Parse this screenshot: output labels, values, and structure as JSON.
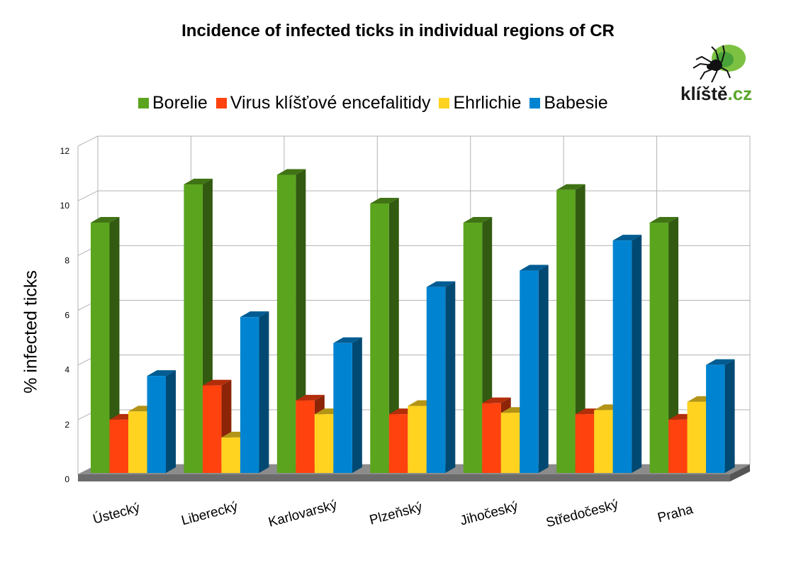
{
  "chart_data": {
    "type": "bar",
    "title": "Incidence of infected ticks in individual regions of CR",
    "ylabel": "% infected ticks",
    "xlabel": "",
    "ylim": [
      0,
      12
    ],
    "yticks": [
      "0",
      "2",
      "4",
      "6",
      "8",
      "10",
      "12"
    ],
    "grid": true,
    "legend_position": "top",
    "categories": [
      "Ústecký",
      "Liberecký",
      "Karlovarský",
      "Plzeňský",
      "Jihočeský",
      "Středočeský",
      "Praha"
    ],
    "series": [
      {
        "name": "Borelie",
        "color": "#5ba41e",
        "values": [
          9.2,
          10.6,
          10.95,
          9.9,
          9.2,
          10.4,
          9.2
        ]
      },
      {
        "name": "Virus klíšťové encefalitidy",
        "color": "#ff420e",
        "values": [
          2.0,
          3.25,
          2.7,
          2.2,
          2.6,
          2.2,
          2.0
        ]
      },
      {
        "name": "Ehrlichie",
        "color": "#ffd320",
        "values": [
          2.3,
          1.35,
          2.2,
          2.5,
          2.25,
          2.35,
          2.65
        ]
      },
      {
        "name": "Babesie",
        "color": "#0084d1",
        "values": [
          3.6,
          5.75,
          4.8,
          6.85,
          7.45,
          8.55,
          4.0
        ]
      }
    ]
  },
  "logo": {
    "word": "klíště",
    "tld": ".cz",
    "icon": "tick-icon"
  }
}
